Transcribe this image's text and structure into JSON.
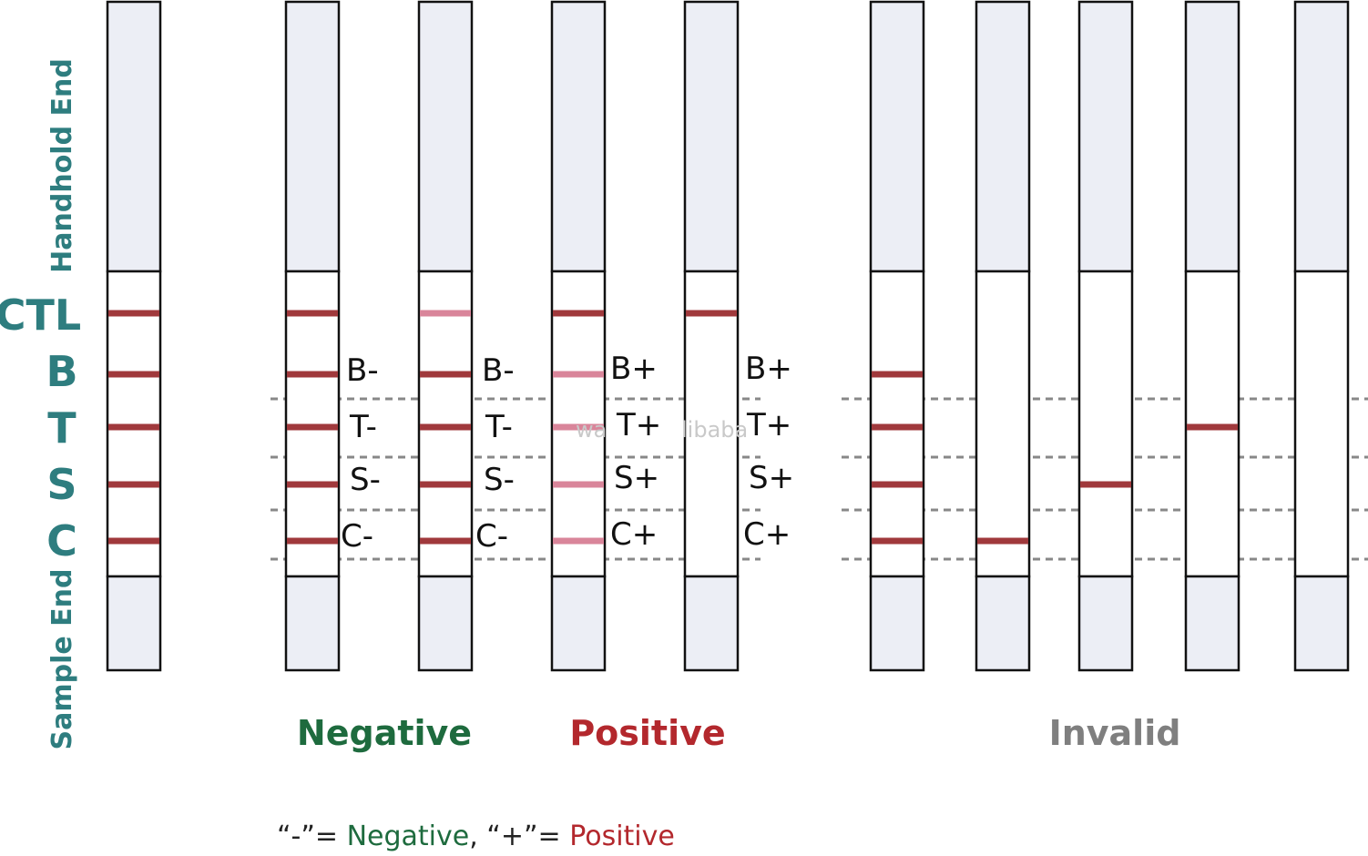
{
  "axis": {
    "handhold_end": "Handhold End",
    "sample_end": "Sample End"
  },
  "rows": [
    "CTL",
    "B",
    "T",
    "S",
    "C"
  ],
  "strips": {
    "reference": {
      "lines": [
        "strong",
        "strong",
        "strong",
        "strong",
        "strong"
      ]
    },
    "negative": [
      {
        "lines": [
          "strong",
          "strong",
          "strong",
          "strong",
          "strong"
        ],
        "marks": [
          "B-",
          "T-",
          "S-",
          "C-"
        ]
      },
      {
        "lines": [
          "faint",
          "strong",
          "strong",
          "strong",
          "strong"
        ],
        "marks": [
          "B-",
          "T-",
          "S-",
          "C-"
        ]
      }
    ],
    "positive": [
      {
        "lines": [
          "strong",
          "faint",
          "faint",
          "faint",
          "faint"
        ],
        "marks": [
          "B+",
          "T+",
          "S+",
          "C+"
        ]
      },
      {
        "lines": [
          "strong",
          "none",
          "none",
          "none",
          "none"
        ],
        "marks": [
          "B+",
          "T+",
          "S+",
          "C+"
        ]
      }
    ],
    "invalid": [
      {
        "lines": [
          "none",
          "strong",
          "strong",
          "strong",
          "strong"
        ]
      },
      {
        "lines": [
          "none",
          "none",
          "none",
          "none",
          "strong"
        ]
      },
      {
        "lines": [
          "none",
          "none",
          "none",
          "strong",
          "none"
        ]
      },
      {
        "lines": [
          "none",
          "none",
          "strong",
          "none",
          "none"
        ]
      },
      {
        "lines": [
          "none",
          "none",
          "none",
          "none",
          "none"
        ]
      }
    ]
  },
  "groups": {
    "negative": "Negative",
    "positive": "Positive",
    "invalid": "Invalid"
  },
  "legend": {
    "minus_part": "“-”= ",
    "negative_word": "Negative",
    "sep_part": ", “+”= ",
    "positive_word": "Positive"
  },
  "watermark": [
    "wa",
    "libaba"
  ],
  "colors": {
    "strong_line": "#a0393c",
    "faint_line": "#d9859a",
    "pad": "#eceef5",
    "label_teal": "#2e7d7f",
    "negative_green": "#1e6b3e",
    "positive_red": "#b3282d",
    "invalid_gray": "#7f7f7f",
    "dash": "#888888"
  }
}
